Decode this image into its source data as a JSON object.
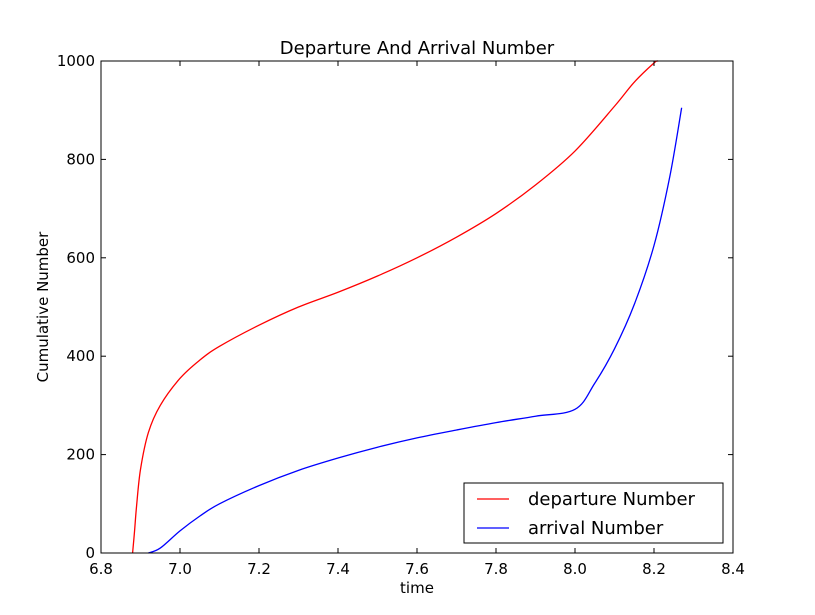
{
  "chart_data": {
    "type": "line",
    "title": "Departure And Arrival Number",
    "xlabel": "time",
    "ylabel": "Cumulative Number",
    "xlim": [
      6.8,
      8.4
    ],
    "ylim": [
      0,
      1000
    ],
    "xticks": [
      "6.8",
      "7.0",
      "7.2",
      "7.4",
      "7.6",
      "7.8",
      "8.0",
      "8.2",
      "8.4"
    ],
    "yticks": [
      "0",
      "200",
      "400",
      "600",
      "800",
      "1000"
    ],
    "grid": false,
    "legend_position": "lower-right",
    "series": [
      {
        "name": "departure Number",
        "color": "#ff0000",
        "x": [
          6.88,
          6.885,
          6.89,
          6.9,
          6.92,
          6.95,
          7.0,
          7.05,
          7.1,
          7.2,
          7.3,
          7.4,
          7.5,
          7.6,
          7.7,
          7.8,
          7.9,
          8.0,
          8.1,
          8.15,
          8.2,
          8.21
        ],
        "y": [
          0,
          45,
          95,
          170,
          245,
          300,
          355,
          392,
          420,
          463,
          500,
          530,
          563,
          600,
          642,
          690,
          748,
          817,
          908,
          957,
          996,
          1000
        ]
      },
      {
        "name": "arrival Number",
        "color": "#0000ff",
        "x": [
          6.92,
          6.95,
          7.0,
          7.05,
          7.1,
          7.2,
          7.3,
          7.4,
          7.5,
          7.6,
          7.7,
          7.8,
          7.9,
          8.0,
          8.05,
          8.1,
          8.15,
          8.2,
          8.24,
          8.27
        ],
        "y": [
          0,
          10,
          45,
          75,
          100,
          137,
          168,
          193,
          215,
          234,
          250,
          265,
          278,
          292,
          345,
          415,
          505,
          625,
          765,
          905
        ]
      }
    ]
  }
}
